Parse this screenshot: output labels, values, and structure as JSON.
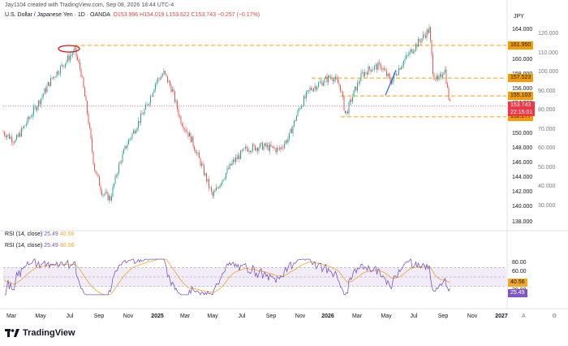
{
  "header": {
    "creator": "Jay1104 created with TradingView.com, Sep 08, 2026 18:44 UTC-4"
  },
  "legend": {
    "symbol": "U.S. Dollar / Japanese Yen · 1D · OANDA",
    "o": "O153.996",
    "h": "H154.019",
    "l": "L153.622",
    "c": "C153.743",
    "chg": "−0.257 (−0.17%)"
  },
  "price_axis": {
    "currency": "JPY",
    "ticks": [
      "164.000",
      "162.000",
      "160.000",
      "158.000",
      "156.000",
      "154.000",
      "152.000",
      "150.000",
      "148.000",
      "146.000",
      "144.000",
      "142.000",
      "140.000",
      "138.000"
    ],
    "pct_ticks": [
      "120.000",
      "110.000",
      "100.000",
      "90.000",
      "80.000",
      "70.000",
      "60.000",
      "50.000",
      "40.000",
      "30.000"
    ]
  },
  "levels": [
    {
      "price": 161.95,
      "label": "161.950",
      "color": "#f59d00"
    },
    {
      "price": 157.523,
      "label": "157.523",
      "color": "#f59d00"
    },
    {
      "price": 155.103,
      "label": "155.103",
      "color": "#f59d00"
    },
    {
      "price": 152.277,
      "label": "152.277",
      "color": "#f59d00"
    }
  ],
  "current": {
    "price": 153.743,
    "label": "153.743",
    "countdown": "22:15:01",
    "color": "#f23645"
  },
  "rsi": {
    "label1": "RSI (14, close)",
    "val1a": "25.49",
    "val1b": "40.56",
    "label2": "RSI (14, close)",
    "val2a": "25.49",
    "val2b": "40.56",
    "ticks": [
      "80.00",
      "60.00",
      "20.00"
    ],
    "rsi_value": 25.49,
    "ma_value": 40.56,
    "rsi_color": "#7e57c2",
    "ma_color": "#f5a623"
  },
  "x_axis": {
    "labels": [
      "Mar",
      "May",
      "Jul",
      "Sep",
      "Nov",
      "2025",
      "Mar",
      "May",
      "Jul",
      "Sep",
      "Nov",
      "2026",
      "Mar",
      "May",
      "Jul",
      "Sep",
      "Nov",
      "2027"
    ]
  },
  "icons": {
    "settings": "A",
    "gear": "⚙"
  },
  "brand": {
    "name": "TradingView"
  }
}
